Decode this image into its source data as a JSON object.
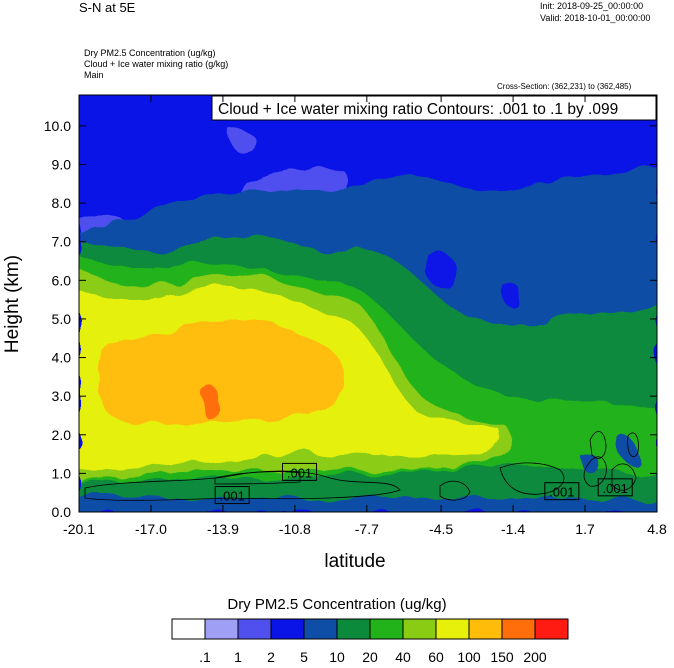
{
  "header": {
    "title": "S-N at 5E",
    "init": "Init: 2018-09-25_00:00:00",
    "valid": "Valid: 2018-10-01_00:00:00",
    "field1": "Dry PM2.5 Concentration   (ug/kg)",
    "field2": "Cloud + Ice water mixing ratio   (g/kg)",
    "field3": "Main",
    "cross_section": "Cross-Section: (362,231) to (362,485)"
  },
  "chart_data": {
    "type": "heatmap",
    "title": "S-N at 5E",
    "xlabel": "latitude",
    "ylabel": "Height (km)",
    "contour_label": "Cloud + Ice water mixing ratio Contours: .001 to .1 by .099",
    "x_ticks": [
      "-20.1",
      "-17.0",
      "-13.9",
      "-10.8",
      "-7.7",
      "-4.5",
      "-1.4",
      "1.7",
      "4.8"
    ],
    "y_ticks": [
      "0.0",
      "1.0",
      "2.0",
      "3.0",
      "4.0",
      "5.0",
      "6.0",
      "7.0",
      "8.0",
      "9.0",
      "10.0"
    ],
    "xlim": [
      -20.1,
      4.8
    ],
    "ylim": [
      0.0,
      10.8
    ],
    "contour_labels": [
      {
        "text": ".001",
        "x": -10.6,
        "y": 1.0
      },
      {
        "text": ".001",
        "x": -13.5,
        "y": 0.4
      },
      {
        "text": ".001",
        "x": 0.7,
        "y": 0.5
      },
      {
        "text": ".001",
        "x": 3.0,
        "y": 0.6
      }
    ],
    "colorbar": {
      "title": "Dry PM2.5 Concentration  (ug/kg)",
      "levels": [
        ".1",
        "1",
        "2",
        "5",
        "10",
        "20",
        "40",
        "60",
        "100",
        "150",
        "200"
      ],
      "colors": [
        "#ffffff",
        "#9f9ff5",
        "#5050ef",
        "#0a14e6",
        "#0f4ea6",
        "#0c8a3c",
        "#22b31a",
        "#8acc14",
        "#e6f00a",
        "#ffbd0a",
        "#ff6e0a",
        "#ff1a12"
      ]
    }
  }
}
